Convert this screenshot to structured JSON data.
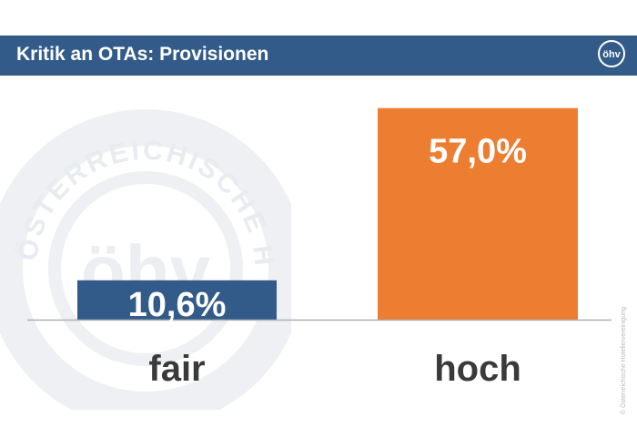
{
  "header": {
    "title": "Kritik an OTAs: Provisionen",
    "logo_text": "öhv"
  },
  "watermark": {
    "ring_text": "ÖSTERREICHISCHE HOTELIERVEREINIGUNG",
    "logo_text": "öhv"
  },
  "side_note": "© Österreichische Hoteliervereinigung",
  "colors": {
    "header": "#335b89",
    "bar_fair": "#335b89",
    "bar_hoch": "#ed7d31",
    "category_text": "#3a3a3a",
    "baseline": "#b0b0b0"
  },
  "chart_data": {
    "type": "bar",
    "categories": [
      "fair",
      "hoch"
    ],
    "values": [
      10.6,
      57.0
    ],
    "data_labels": [
      "10,6%",
      "57,0%"
    ],
    "bar_colors": [
      "#335b89",
      "#ed7d31"
    ],
    "ylim": [
      0,
      60
    ],
    "grid": false,
    "legend": "none"
  }
}
